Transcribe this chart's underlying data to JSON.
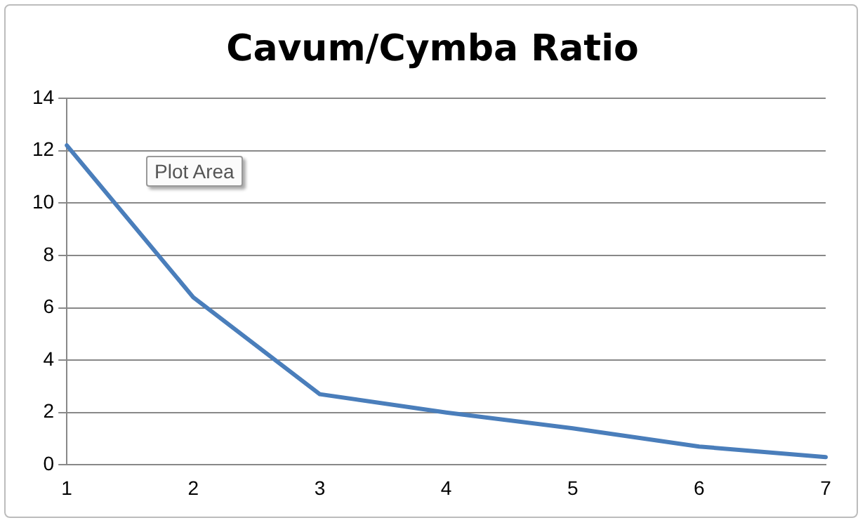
{
  "chart_data": {
    "type": "line",
    "title": "Cavum/Cymba Ratio",
    "categories": [
      "1",
      "2",
      "3",
      "4",
      "5",
      "6",
      "7"
    ],
    "series": [
      {
        "color": "#4a7ebb",
        "values": [
          12.2,
          6.4,
          2.7,
          2.0,
          1.4,
          0.7,
          0.3
        ]
      }
    ],
    "ylim": [
      0,
      14
    ],
    "yticks": [
      0,
      2,
      4,
      6,
      8,
      10,
      12,
      14
    ],
    "grid": "y",
    "legend": false,
    "marker": "none",
    "line_style": "solid",
    "annotations": [
      "Plot Area"
    ]
  }
}
